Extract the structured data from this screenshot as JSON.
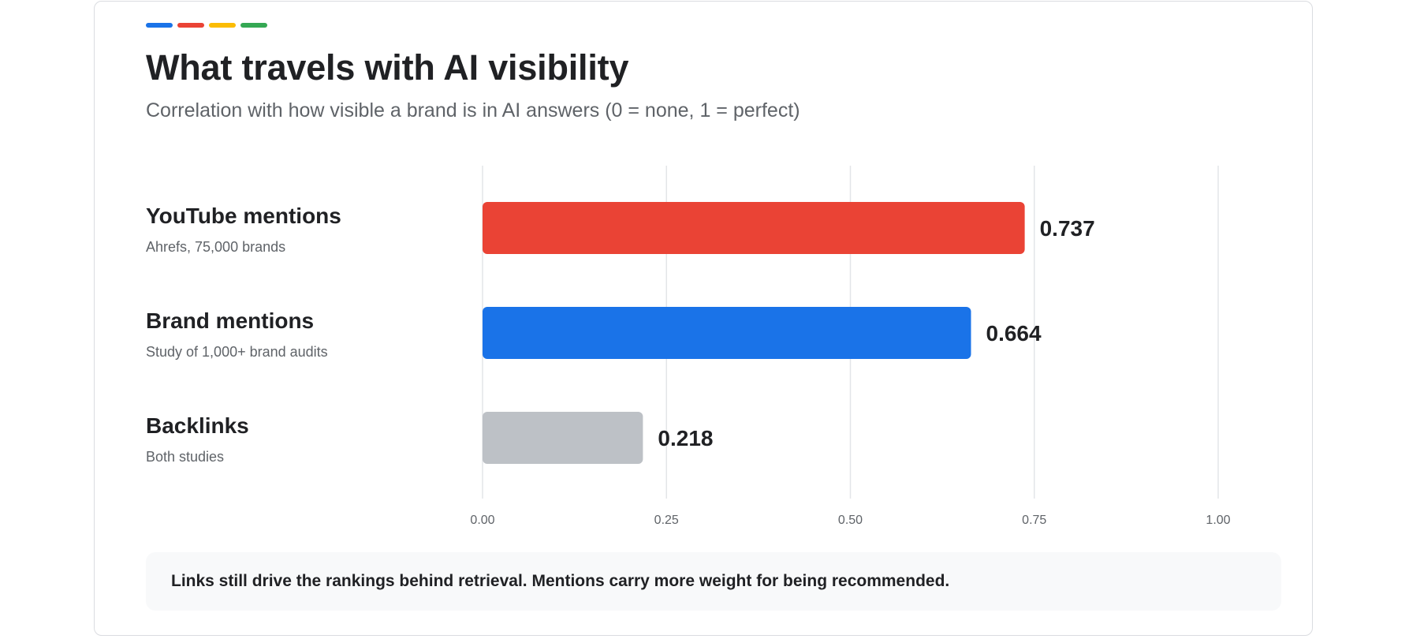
{
  "accent_colors": [
    "#1a73e8",
    "#ea4335",
    "#fbbc04",
    "#34a853"
  ],
  "chart_data": {
    "type": "bar",
    "orientation": "horizontal",
    "title": "What travels with AI visibility",
    "subtitle": "Correlation with how visible a brand is in AI answers (0 = none, 1 = perfect)",
    "categories": [
      {
        "label": "YouTube mentions",
        "source": "Ahrefs, 75,000 brands",
        "value": 0.737,
        "value_label": "0.737",
        "color": "#ea4335"
      },
      {
        "label": "Brand mentions",
        "source": "Study of 1,000+ brand audits",
        "value": 0.664,
        "value_label": "0.664",
        "color": "#1a73e8"
      },
      {
        "label": "Backlinks",
        "source": "Both studies",
        "value": 0.218,
        "value_label": "0.218",
        "color": "#bdc1c6"
      }
    ],
    "xlim": [
      0,
      1
    ],
    "xticks": [
      "0.00",
      "0.25",
      "0.50",
      "0.75",
      "1.00"
    ],
    "grid": "vertical",
    "legend": "none"
  },
  "note": "Links still drive the rankings behind retrieval. Mentions carry more weight for being recommended."
}
